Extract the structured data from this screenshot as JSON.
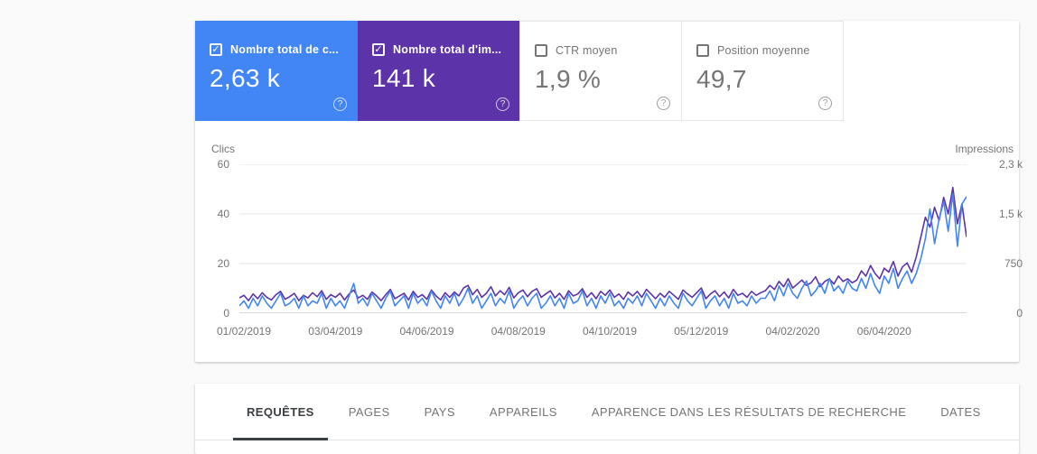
{
  "accent_colors": {
    "clicks_blue": "#4285f4",
    "impressions_purple": "#5c33a8",
    "text_gray": "#757575",
    "active_tab": "#3c4043"
  },
  "cards": [
    {
      "id": "clicks",
      "label": "Nombre total de c...",
      "value": "2,63 k",
      "checked": true,
      "color": "#4285f4",
      "help_icon": "circled-question-mark"
    },
    {
      "id": "impressions",
      "label": "Nombre total d'im...",
      "value": "141 k",
      "checked": true,
      "color": "#5c33a8",
      "help_icon": "circled-question-mark"
    },
    {
      "id": "ctr",
      "label": "CTR moyen",
      "value": "1,9 %",
      "checked": false,
      "color": null,
      "help_icon": "circled-question-mark"
    },
    {
      "id": "position",
      "label": "Position moyenne",
      "value": "49,7",
      "checked": false,
      "color": null,
      "help_icon": "circled-question-mark"
    }
  ],
  "chart_data": {
    "type": "line",
    "title": "",
    "left_axis": {
      "label": "Clics",
      "ticks": [
        0,
        20,
        40,
        60
      ],
      "tick_labels": [
        "0",
        "20",
        "40",
        "60"
      ],
      "range": [
        0,
        60
      ]
    },
    "right_axis": {
      "label": "Impressions",
      "tick_values": [
        0,
        750,
        1500,
        2250
      ],
      "tick_labels": [
        "0",
        "750",
        "1,5 k",
        "2,3 k"
      ],
      "range": [
        0,
        2250
      ]
    },
    "x_axis": {
      "tick_labels": [
        "01/02/2019",
        "03/04/2019",
        "04/06/2019",
        "04/08/2019",
        "04/10/2019",
        "05/12/2019",
        "04/02/2020",
        "06/04/2020"
      ],
      "tick_indices": [
        0,
        20,
        40,
        60,
        80,
        100,
        120,
        140
      ]
    },
    "grid": true,
    "legend_position": "none",
    "series": [
      {
        "name": "Clics",
        "axis": "left",
        "color": "#4285f4",
        "values": [
          3,
          5,
          2,
          6,
          3,
          7,
          4,
          2,
          5,
          8,
          3,
          4,
          6,
          2,
          7,
          3,
          5,
          4,
          8,
          2,
          6,
          3,
          5,
          2,
          7,
          12,
          4,
          6,
          3,
          8,
          5,
          2,
          6,
          9,
          3,
          5,
          7,
          2,
          8,
          4,
          6,
          3,
          9,
          5,
          2,
          7,
          4,
          8,
          3,
          6,
          10,
          4,
          7,
          2,
          5,
          8,
          3,
          6,
          4,
          9,
          2,
          5,
          7,
          3,
          6,
          8,
          2,
          4,
          7,
          3,
          6,
          2,
          8,
          4,
          5,
          9,
          3,
          6,
          2,
          7,
          4,
          8,
          3,
          5,
          2,
          6,
          4,
          7,
          3,
          8,
          5,
          2,
          6,
          3,
          7,
          4,
          2,
          8,
          5,
          3,
          6,
          9,
          2,
          5,
          7,
          3,
          6,
          2,
          8,
          4,
          5,
          3,
          7,
          4,
          6,
          6,
          9,
          5,
          11,
          7,
          12,
          8,
          6,
          10,
          13,
          7,
          9,
          12,
          8,
          14,
          9,
          11,
          8,
          13,
          10,
          9,
          14,
          10,
          16,
          11,
          8,
          15,
          12,
          18,
          10,
          14,
          17,
          12,
          16,
          22,
          30,
          42,
          28,
          38,
          45,
          33,
          48,
          27,
          44,
          47
        ]
      },
      {
        "name": "Impressions",
        "axis": "right",
        "color": "#5c33a8",
        "values": [
          230,
          270,
          190,
          290,
          220,
          310,
          240,
          200,
          280,
          330,
          210,
          250,
          300,
          190,
          270,
          230,
          310,
          250,
          340,
          210,
          280,
          240,
          300,
          200,
          290,
          350,
          230,
          270,
          210,
          320,
          260,
          190,
          280,
          360,
          220,
          260,
          300,
          200,
          330,
          240,
          280,
          210,
          350,
          260,
          200,
          310,
          240,
          320,
          260,
          380,
          420,
          280,
          360,
          240,
          300,
          400,
          260,
          340,
          280,
          390,
          230,
          310,
          350,
          250,
          330,
          370,
          240,
          290,
          340,
          230,
          300,
          210,
          340,
          260,
          290,
          370,
          240,
          310,
          220,
          330,
          270,
          350,
          240,
          290,
          210,
          320,
          260,
          330,
          240,
          360,
          290,
          220,
          300,
          240,
          330,
          270,
          210,
          350,
          290,
          240,
          310,
          380,
          220,
          290,
          340,
          250,
          320,
          230,
          360,
          270,
          300,
          240,
          330,
          270,
          310,
          340,
          420,
          360,
          480,
          400,
          520,
          380,
          440,
          500,
          420,
          460,
          550,
          400,
          480,
          520,
          440,
          560,
          480,
          520,
          460,
          500,
          640,
          560,
          720,
          600,
          520,
          680,
          620,
          780,
          560,
          700,
          760,
          620,
          850,
          1150,
          1450,
          1300,
          1600,
          1400,
          1750,
          1500,
          1900,
          1350,
          1650,
          1150
        ]
      }
    ]
  },
  "tabs": {
    "items": [
      {
        "id": "requetes",
        "label": "REQUÊTES",
        "active": true
      },
      {
        "id": "pages",
        "label": "PAGES",
        "active": false
      },
      {
        "id": "pays",
        "label": "PAYS",
        "active": false
      },
      {
        "id": "appareils",
        "label": "APPAREILS",
        "active": false
      },
      {
        "id": "apparence",
        "label": "APPARENCE DANS LES RÉSULTATS DE RECHERCHE",
        "active": false
      },
      {
        "id": "dates",
        "label": "DATES",
        "active": false
      }
    ]
  }
}
